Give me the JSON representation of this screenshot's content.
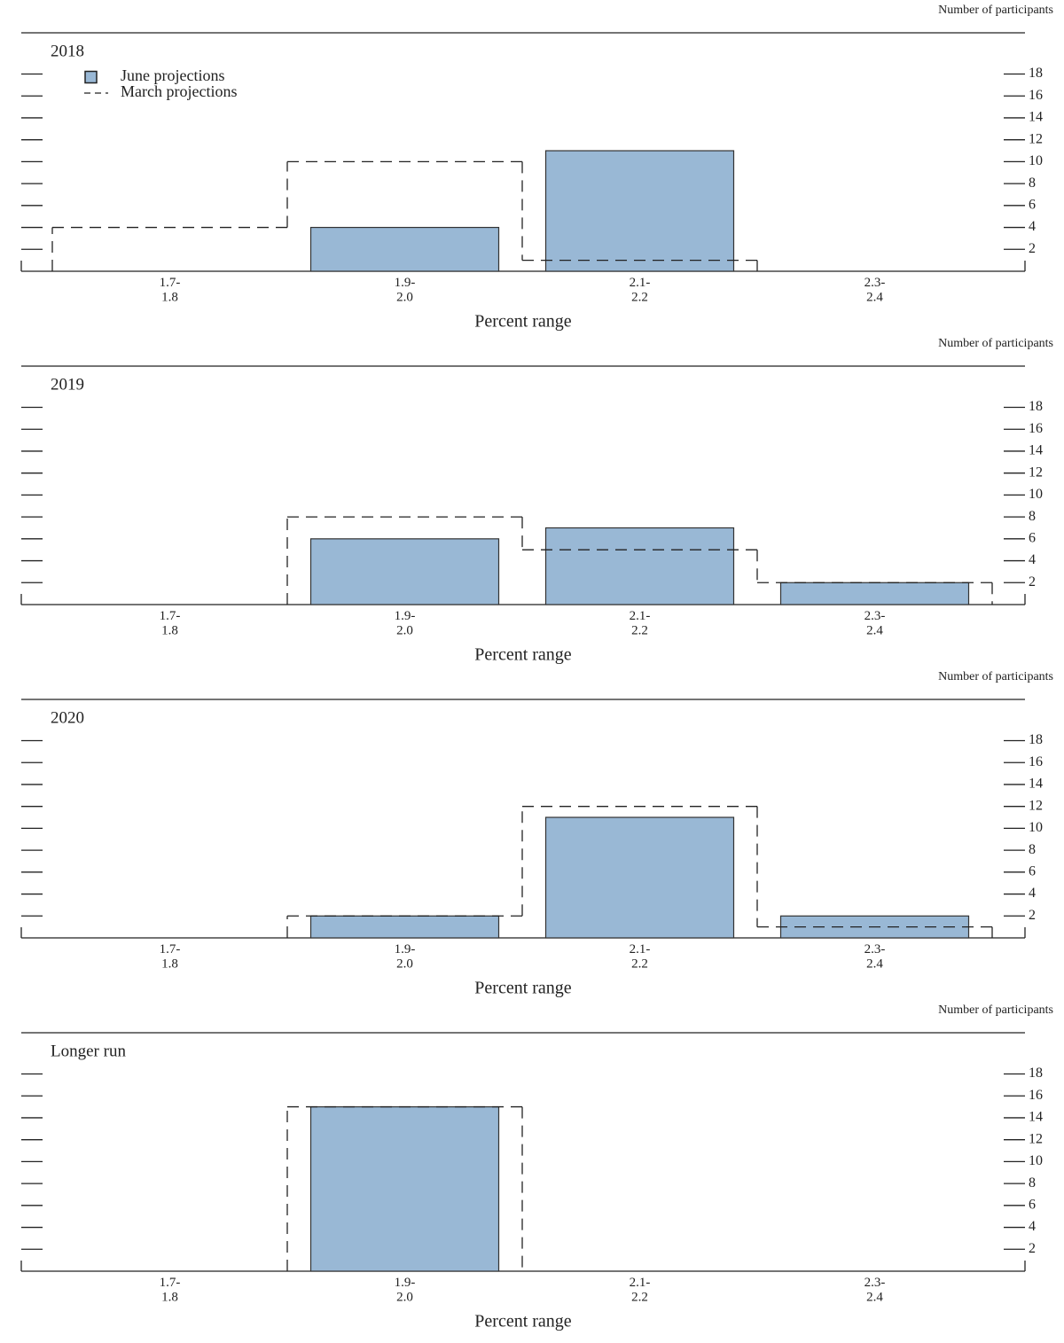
{
  "chart_data": [
    {
      "type": "bar",
      "title": "2018",
      "y2label": "Number of participants",
      "xlabel": "Percent range",
      "categories": [
        "1.7-\n1.8",
        "1.9-\n2.0",
        "2.1-\n2.2",
        "2.3-\n2.4"
      ],
      "series": [
        {
          "name": "June projections",
          "type": "bar",
          "color": "#99b8d5",
          "values": [
            0,
            4,
            11,
            0
          ]
        },
        {
          "name": "March projections",
          "type": "step",
          "color": "#0a7ab4",
          "values": [
            4,
            10,
            1,
            0
          ]
        }
      ],
      "ylim": [
        0,
        18
      ],
      "yticks": [
        2,
        4,
        6,
        8,
        10,
        12,
        14,
        16,
        18
      ],
      "legend": "upper left"
    },
    {
      "type": "bar",
      "title": "2019",
      "y2label": "Number of participants",
      "xlabel": "Percent range",
      "categories": [
        "1.7-\n1.8",
        "1.9-\n2.0",
        "2.1-\n2.2",
        "2.3-\n2.4"
      ],
      "series": [
        {
          "type": "bar",
          "color": "#99b8d5",
          "values": [
            0,
            6,
            7,
            2
          ]
        },
        {
          "type": "step",
          "color": "#0a7ab4",
          "values": [
            0,
            8,
            5,
            2
          ]
        }
      ],
      "ylim": [
        0,
        18
      ],
      "yticks": [
        2,
        4,
        6,
        8,
        10,
        12,
        14,
        16,
        18
      ]
    },
    {
      "type": "bar",
      "title": "2020",
      "y2label": "Number of participants",
      "xlabel": "Percent range",
      "categories": [
        "1.7-\n1.8",
        "1.9-\n2.0",
        "2.1-\n2.2",
        "2.3-\n2.4"
      ],
      "series": [
        {
          "type": "bar",
          "color": "#99b8d5",
          "values": [
            0,
            2,
            11,
            2
          ]
        },
        {
          "type": "step",
          "color": "#0a7ab4",
          "values": [
            0,
            2,
            12,
            1
          ]
        }
      ],
      "ylim": [
        0,
        18
      ],
      "yticks": [
        2,
        4,
        6,
        8,
        10,
        12,
        14,
        16,
        18
      ]
    },
    {
      "type": "bar",
      "title": "Longer run",
      "y2label": "Number of participants",
      "xlabel": "Percent range",
      "categories": [
        "1.7-\n1.8",
        "1.9-\n2.0",
        "2.1-\n2.2",
        "2.3-\n2.4"
      ],
      "series": [
        {
          "type": "bar",
          "color": "#99b8d5",
          "values": [
            0,
            15,
            0,
            0
          ]
        },
        {
          "type": "step",
          "color": "#0a7ab4",
          "values": [
            0,
            15,
            0,
            0
          ]
        }
      ],
      "ylim": [
        0,
        18
      ],
      "yticks": [
        2,
        4,
        6,
        8,
        10,
        12,
        14,
        16,
        18
      ]
    }
  ]
}
